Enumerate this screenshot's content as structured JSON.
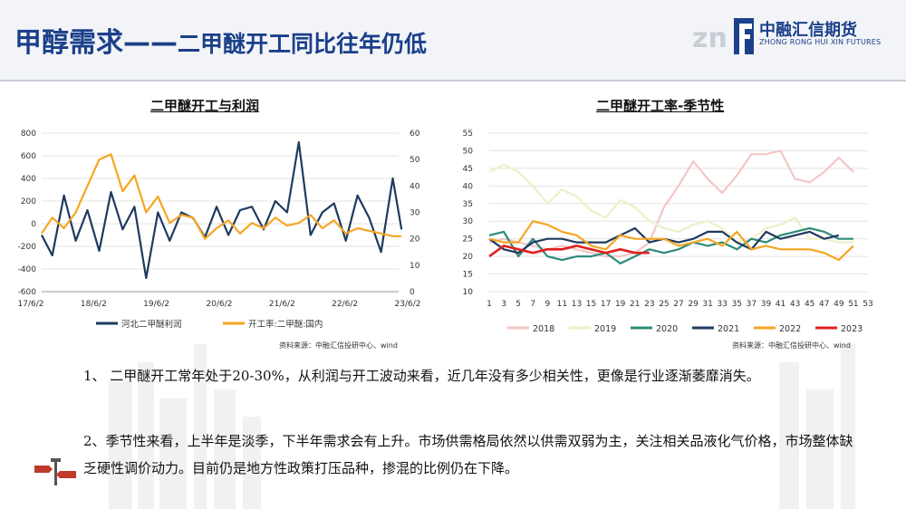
{
  "header": {
    "title_main": "甲醇需求——",
    "title_sub": "二甲醚开工同比往年仍低",
    "logo_cn": "中融汇信期货",
    "logo_en": "ZHONG RONG HUI XIN FUTURES"
  },
  "chart_left": {
    "title": "二甲醚开工与利润",
    "source": "资料来源：中融汇信投研中心、wind"
  },
  "chart_right": {
    "title": "二甲醚开工率-季节性",
    "source": "资料来源：中融汇信投研中心、wind"
  },
  "paragraphs": [
    "1、 二甲醚开工常年处于20-30%，从利润与开工波动来看，近几年没有多少相关性，更像是行业逐渐萎靡消失。",
    "2、季节性来看，上半年是淡季，下半年需求会有上升。市场供需格局依然以供需双弱为主，关注相关品液化气价格，市场整体缺乏硬性调价动力。目前仍是地方性政策打压品种，掺混的比例仍在下降。"
  ],
  "chart_data": [
    {
      "type": "line",
      "title": "二甲醚开工与利润",
      "x_ticks": [
        "17/6/2",
        "18/6/2",
        "19/6/2",
        "20/6/2",
        "21/6/2",
        "22/6/2",
        "23/6/2"
      ],
      "y_left": {
        "ticks": [
          800,
          600,
          400,
          200,
          0,
          -200,
          -400,
          -600
        ],
        "ylim": [
          -600,
          800
        ]
      },
      "y_right": {
        "ticks": [
          60,
          50,
          40,
          30,
          20,
          10,
          0
        ],
        "ylim": [
          0,
          60
        ]
      },
      "series": [
        {
          "name": "河北二甲醚利润",
          "axis": "left",
          "color": "#1f3a5f",
          "x": [
            2017.42,
            2017.6,
            2017.8,
            2018.0,
            2018.2,
            2018.4,
            2018.6,
            2018.8,
            2019.0,
            2019.2,
            2019.4,
            2019.6,
            2019.8,
            2020.0,
            2020.2,
            2020.4,
            2020.6,
            2020.8,
            2021.0,
            2021.2,
            2021.4,
            2021.6,
            2021.8,
            2022.0,
            2022.2,
            2022.4,
            2022.6,
            2022.8,
            2023.0,
            2023.2,
            2023.4,
            2023.55
          ],
          "y": [
            -100,
            -280,
            250,
            -150,
            120,
            -240,
            280,
            -50,
            150,
            -480,
            100,
            -150,
            100,
            50,
            -120,
            150,
            -100,
            120,
            150,
            -50,
            200,
            100,
            720,
            -100,
            100,
            180,
            -150,
            250,
            50,
            -250,
            400,
            -50
          ]
        },
        {
          "name": "开工率:二甲醚:国内",
          "axis": "right",
          "color": "#f5a623",
          "x": [
            2017.42,
            2017.6,
            2017.8,
            2018.0,
            2018.2,
            2018.4,
            2018.6,
            2018.8,
            2019.0,
            2019.2,
            2019.4,
            2019.6,
            2019.8,
            2020.0,
            2020.2,
            2020.4,
            2020.6,
            2020.8,
            2021.0,
            2021.2,
            2021.4,
            2021.6,
            2021.8,
            2022.0,
            2022.2,
            2022.4,
            2022.6,
            2022.8,
            2023.0,
            2023.2,
            2023.4,
            2023.55
          ],
          "y": [
            22,
            28,
            24,
            30,
            40,
            50,
            52,
            38,
            44,
            30,
            36,
            26,
            29,
            28,
            20,
            24,
            27,
            22,
            26,
            24,
            28,
            25,
            26,
            29,
            24,
            27,
            22,
            24,
            23,
            22,
            21,
            21
          ]
        }
      ]
    },
    {
      "type": "line",
      "title": "二甲醚开工率-季节性",
      "x_ticks": [
        1,
        3,
        5,
        7,
        9,
        11,
        13,
        15,
        17,
        19,
        21,
        23,
        25,
        27,
        29,
        31,
        33,
        35,
        37,
        39,
        41,
        43,
        45,
        47,
        49,
        51,
        53
      ],
      "ylim": [
        10,
        55
      ],
      "y_ticks": [
        55,
        50,
        45,
        40,
        35,
        30,
        25,
        20,
        15,
        10
      ],
      "legend_position": "bottom",
      "series": [
        {
          "name": "2018",
          "color": "#f4c6c6",
          "x": [
            1,
            3,
            5,
            7,
            9,
            11,
            13,
            15,
            17,
            19,
            21,
            23,
            25,
            27,
            29,
            31,
            33,
            35,
            37,
            39,
            41,
            43,
            45,
            47,
            49,
            51
          ],
          "y": [
            24,
            25,
            24,
            23,
            22,
            23,
            22,
            21,
            20,
            20,
            21,
            24,
            34,
            40,
            47,
            42,
            38,
            43,
            49,
            49,
            50,
            42,
            41,
            44,
            48,
            44
          ]
        },
        {
          "name": "2019",
          "color": "#eef0c8",
          "x": [
            1,
            3,
            5,
            7,
            9,
            11,
            13,
            15,
            17,
            19,
            21,
            23,
            25,
            27,
            29,
            31,
            33,
            35,
            37,
            39,
            41,
            43,
            45,
            47,
            49,
            51
          ],
          "y": [
            44,
            46,
            44,
            40,
            35,
            39,
            37,
            33,
            31,
            36,
            34,
            30,
            28,
            27,
            29,
            30,
            28,
            24,
            25,
            28,
            29,
            31,
            25,
            25,
            24,
            24
          ]
        },
        {
          "name": "2020",
          "color": "#2e8b7a",
          "x": [
            1,
            3,
            5,
            7,
            9,
            11,
            13,
            15,
            17,
            19,
            21,
            23,
            25,
            27,
            29,
            31,
            33,
            35,
            37,
            39,
            41,
            43,
            45,
            47,
            49,
            51
          ],
          "y": [
            26,
            27,
            20,
            25,
            20,
            19,
            20,
            20,
            21,
            18,
            20,
            22,
            21,
            22,
            24,
            23,
            24,
            22,
            25,
            24,
            26,
            27,
            28,
            27,
            25,
            25
          ]
        },
        {
          "name": "2021",
          "color": "#1f3a5f",
          "x": [
            1,
            3,
            5,
            7,
            9,
            11,
            13,
            15,
            17,
            19,
            21,
            23,
            25,
            27,
            29,
            31,
            33,
            35,
            37,
            39,
            41,
            43,
            45,
            47,
            49
          ],
          "y": [
            25,
            22,
            21,
            24,
            25,
            25,
            24,
            24,
            24,
            26,
            28,
            24,
            25,
            24,
            25,
            27,
            27,
            24,
            22,
            27,
            25,
            26,
            27,
            25,
            26
          ]
        },
        {
          "name": "2022",
          "color": "#f5a623",
          "x": [
            1,
            3,
            5,
            7,
            9,
            11,
            13,
            15,
            17,
            19,
            21,
            23,
            25,
            27,
            29,
            31,
            33,
            35,
            37,
            39,
            41,
            43,
            45,
            47,
            49,
            51
          ],
          "y": [
            25,
            24,
            24,
            30,
            29,
            27,
            26,
            23,
            22,
            26,
            25,
            25,
            25,
            23,
            24,
            25,
            23,
            27,
            22,
            23,
            22,
            22,
            22,
            21,
            19,
            23
          ]
        },
        {
          "name": "2023",
          "color": "#e02020",
          "x": [
            1,
            3,
            5,
            7,
            9,
            11,
            13,
            15,
            17,
            19,
            21,
            23
          ],
          "y": [
            20,
            23,
            22,
            21,
            22,
            22,
            23,
            22,
            21,
            22,
            21,
            21
          ]
        }
      ]
    }
  ]
}
